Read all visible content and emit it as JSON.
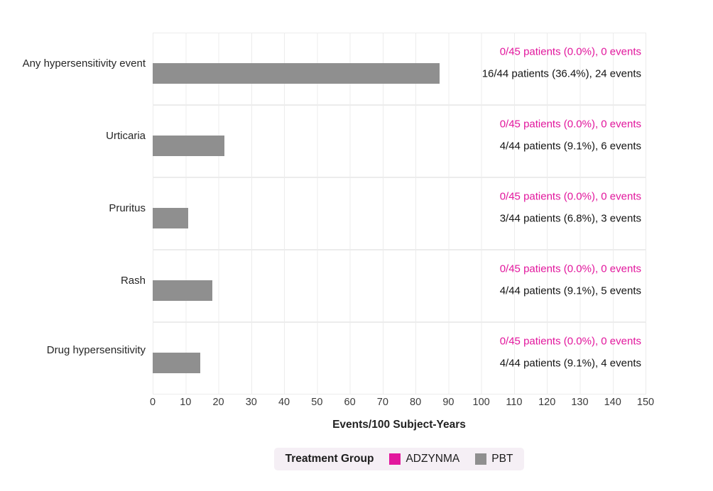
{
  "chart_data": {
    "type": "bar",
    "orientation": "horizontal",
    "title": "",
    "xlabel": "Events/100 Subject-Years",
    "xlim": [
      0,
      150
    ],
    "xticks": [
      0,
      10,
      20,
      30,
      40,
      50,
      60,
      70,
      80,
      90,
      100,
      110,
      120,
      130,
      140,
      150
    ],
    "grid": "vertical-major",
    "categories": [
      "Any hypersensitivity event",
      "Urticaria",
      "Pruritus",
      "Rash",
      "Drug hypersensitivity"
    ],
    "series": [
      {
        "name": "ADZYNMA",
        "color": "#e2179d",
        "values": [
          0,
          0,
          0,
          0,
          0
        ]
      },
      {
        "name": "PBT",
        "color": "#8f8f8f",
        "values": [
          87.3,
          21.8,
          10.9,
          18.2,
          14.5
        ]
      }
    ],
    "legend": {
      "title": "Treatment Group",
      "position": "bottom",
      "entries": [
        {
          "label": "ADZYNMA",
          "color": "#e2179d"
        },
        {
          "label": "PBT",
          "color": "#8f8f8f"
        }
      ]
    },
    "rows": [
      {
        "label": "Any hypersensitivity event",
        "adzynma_annotation": "0/45 patients (0.0%), 0 events",
        "pbt_annotation": "16/44 patients (36.4%), 24 events",
        "pbt_value": 87.3
      },
      {
        "label": "Urticaria",
        "adzynma_annotation": "0/45 patients (0.0%), 0 events",
        "pbt_annotation": "4/44 patients (9.1%), 6 events",
        "pbt_value": 21.8
      },
      {
        "label": "Pruritus",
        "adzynma_annotation": "0/45 patients (0.0%), 0 events",
        "pbt_annotation": "3/44 patients (6.8%), 3 events",
        "pbt_value": 10.9
      },
      {
        "label": "Rash",
        "adzynma_annotation": "0/45 patients (0.0%), 0 events",
        "pbt_annotation": "4/44 patients (9.1%), 5 events",
        "pbt_value": 18.2
      },
      {
        "label": "Drug hypersensitivity",
        "adzynma_annotation": "0/45 patients (0.0%), 0 events",
        "pbt_annotation": "4/44 patients (9.1%), 4 events",
        "pbt_value": 14.5
      }
    ],
    "colors": {
      "adzynma": "#e2179d",
      "pbt_bar": "#8f8f8f",
      "gridline": "#ececec",
      "legend_background": "#f5eff5"
    }
  }
}
